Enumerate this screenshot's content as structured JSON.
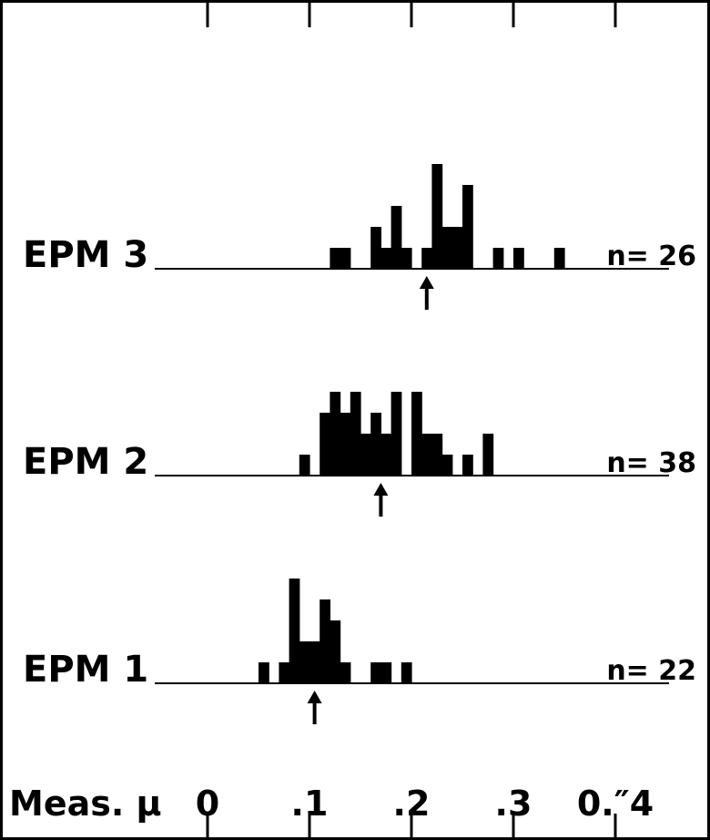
{
  "chart_data": {
    "type": "bar",
    "xlabel": "Meas. μ",
    "xlim": [
      -0.1,
      0.45
    ],
    "xticks": [
      {
        "value": 0,
        "label": "0"
      },
      {
        "value": 0.1,
        "label": ".1"
      },
      {
        "value": 0.2,
        "label": ".2"
      },
      {
        "value": 0.3,
        "label": ".3"
      },
      {
        "value": 0.4,
        "label": "0.″4"
      }
    ],
    "bin_width": 0.01,
    "panels": [
      {
        "name": "EPM 3",
        "n_label": "n= 26",
        "arrow_x": 0.215,
        "bins": [
          {
            "x": 0.125,
            "count": 1
          },
          {
            "x": 0.135,
            "count": 1
          },
          {
            "x": 0.165,
            "count": 2
          },
          {
            "x": 0.175,
            "count": 1
          },
          {
            "x": 0.185,
            "count": 3
          },
          {
            "x": 0.195,
            "count": 1
          },
          {
            "x": 0.215,
            "count": 1
          },
          {
            "x": 0.225,
            "count": 5
          },
          {
            "x": 0.235,
            "count": 2
          },
          {
            "x": 0.245,
            "count": 2
          },
          {
            "x": 0.255,
            "count": 4
          },
          {
            "x": 0.285,
            "count": 1
          },
          {
            "x": 0.305,
            "count": 1
          },
          {
            "x": 0.345,
            "count": 1
          }
        ]
      },
      {
        "name": "EPM 2",
        "n_label": "n= 38",
        "arrow_x": 0.17,
        "bins": [
          {
            "x": 0.095,
            "count": 1
          },
          {
            "x": 0.115,
            "count": 3
          },
          {
            "x": 0.125,
            "count": 4
          },
          {
            "x": 0.135,
            "count": 3
          },
          {
            "x": 0.145,
            "count": 4
          },
          {
            "x": 0.155,
            "count": 2
          },
          {
            "x": 0.165,
            "count": 3
          },
          {
            "x": 0.175,
            "count": 2
          },
          {
            "x": 0.185,
            "count": 4
          },
          {
            "x": 0.205,
            "count": 4
          },
          {
            "x": 0.215,
            "count": 2
          },
          {
            "x": 0.225,
            "count": 2
          },
          {
            "x": 0.235,
            "count": 1
          },
          {
            "x": 0.255,
            "count": 1
          },
          {
            "x": 0.275,
            "count": 2
          }
        ]
      },
      {
        "name": "EPM 1",
        "n_label": "n= 22",
        "arrow_x": 0.105,
        "bins": [
          {
            "x": 0.055,
            "count": 1
          },
          {
            "x": 0.075,
            "count": 1
          },
          {
            "x": 0.085,
            "count": 5
          },
          {
            "x": 0.095,
            "count": 2
          },
          {
            "x": 0.105,
            "count": 2
          },
          {
            "x": 0.115,
            "count": 4
          },
          {
            "x": 0.125,
            "count": 3
          },
          {
            "x": 0.135,
            "count": 1
          },
          {
            "x": 0.165,
            "count": 1
          },
          {
            "x": 0.175,
            "count": 1
          },
          {
            "x": 0.195,
            "count": 1
          }
        ]
      }
    ]
  }
}
